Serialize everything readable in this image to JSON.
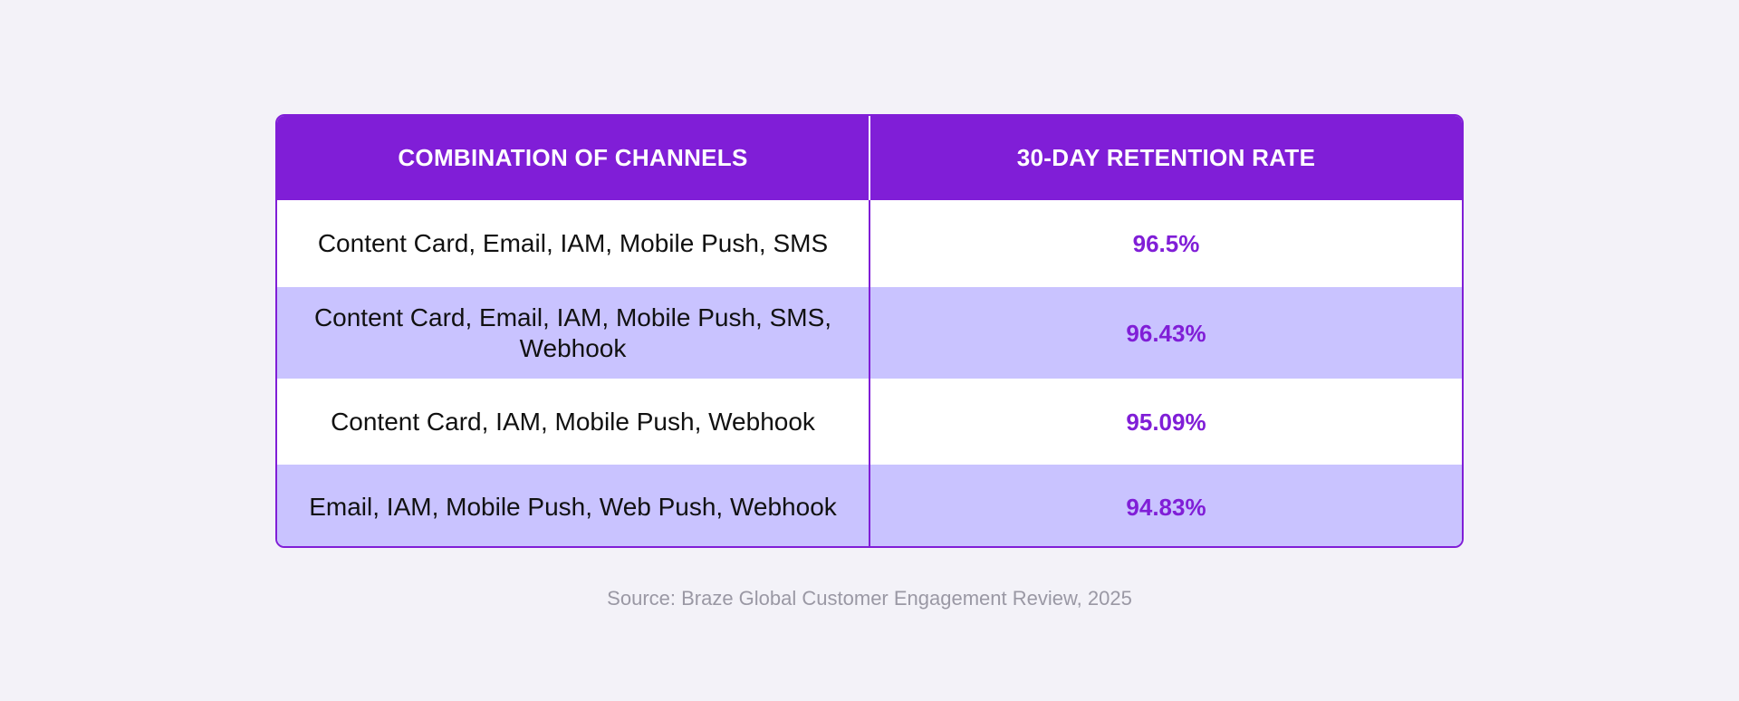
{
  "table": {
    "headers": [
      "COMBINATION OF CHANNELS",
      "30-DAY RETENTION RATE"
    ],
    "rows": [
      {
        "channels": "Content Card, Email, IAM, Mobile Push, SMS",
        "rate": "96.5%"
      },
      {
        "channels": "Content Card, Email, IAM, Mobile Push, SMS, Webhook",
        "rate": "96.43%"
      },
      {
        "channels": "Content Card, IAM, Mobile Push, Webhook",
        "rate": "95.09%"
      },
      {
        "channels": "Email, IAM, Mobile Push, Web Push, Webhook",
        "rate": "94.83%"
      }
    ]
  },
  "source": "Source: Braze Global Customer Engagement Review, 2025",
  "colors": {
    "accent": "#801ed7",
    "row_alt": "#c9c3ff",
    "background": "#f3f2f8"
  }
}
